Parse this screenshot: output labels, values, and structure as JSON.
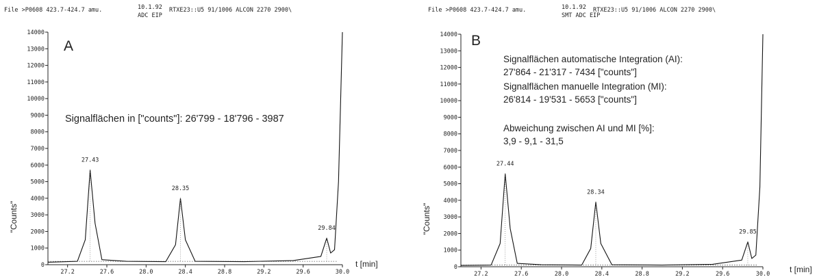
{
  "panels": [
    {
      "header_line1": "File >P0608  423.7-424.7 amu.",
      "header_date": "10.1.92",
      "header_rest": "RTXE23::U5 91/1006 ALCON 2270 2900\\",
      "header_sub": "ADC EIP",
      "panel_letter": "A",
      "annotations": [
        "Signalflächen in [\"counts\"]: 26'799 - 18'796 - 3987"
      ],
      "x_unit_label": "t [min]"
    },
    {
      "header_line1": "File >P0608  423.7-424.7 amu.",
      "header_date": "10.1.92",
      "header_rest": "RTXE23::U5 91/1006 ALCON 2270 2900\\",
      "header_sub": "SMT ADC EIP",
      "panel_letter": "B",
      "annotations": [
        "Signalflächen automatische Integration (AI):",
        "27'864 - 21'317 - 7434 [\"counts\"]",
        "Signalflächen manuelle Integration (MI):",
        "26'814 - 19'531 - 5653 [\"counts\"]",
        "Abweichung zwischen AI und MI [%]:",
        "3,9 - 9,1 - 31,5"
      ],
      "x_unit_label": "t [min]"
    }
  ],
  "chart_data": [
    {
      "type": "line",
      "title": "",
      "xlabel": "t [min]",
      "ylabel": "\"Counts\"",
      "xlim": [
        27.0,
        30.0
      ],
      "ylim": [
        0,
        14000
      ],
      "x_ticks": [
        "27.2",
        "27.6",
        "28.0",
        "28.4",
        "28.8",
        "29.2",
        "29.6",
        "30.0"
      ],
      "y_ticks": [
        "0",
        "1000",
        "2000",
        "3000",
        "4000",
        "5000",
        "6000",
        "7000",
        "8000",
        "9000",
        "10000",
        "11000",
        "12000",
        "13000",
        "14000"
      ],
      "baseline": 200,
      "peaks": [
        {
          "label": "27.43",
          "x": 27.43,
          "y": 5700
        },
        {
          "label": "28.35",
          "x": 28.35,
          "y": 4000
        },
        {
          "label": "29.84",
          "x": 29.84,
          "y": 1600
        }
      ],
      "series": [
        {
          "x": [
            27.0,
            27.3,
            27.38,
            27.43,
            27.48,
            27.55,
            27.8,
            28.2,
            28.3,
            28.35,
            28.4,
            28.5,
            29.0,
            29.5,
            29.78,
            29.84,
            29.88,
            29.92,
            29.96,
            30.0
          ],
          "y": [
            150,
            200,
            1500,
            5700,
            2500,
            300,
            200,
            180,
            1200,
            4000,
            1500,
            200,
            180,
            250,
            500,
            1600,
            700,
            900,
            5000,
            14000
          ]
        }
      ],
      "grid": false,
      "legend": "none"
    },
    {
      "type": "line",
      "title": "",
      "xlabel": "t [min]",
      "ylabel": "\"Counts\"",
      "xlim": [
        27.0,
        30.0
      ],
      "ylim": [
        0,
        14000
      ],
      "x_ticks": [
        "27.2",
        "27.6",
        "28.0",
        "28.4",
        "28.8",
        "29.2",
        "29.6",
        "30.0"
      ],
      "y_ticks": [
        "0",
        "1000",
        "2000",
        "3000",
        "4000",
        "5000",
        "6000",
        "7000",
        "8000",
        "9000",
        "10000",
        "11000",
        "12000",
        "13000",
        "14000"
      ],
      "baseline": 100,
      "peaks": [
        {
          "label": "27.44",
          "x": 27.44,
          "y": 5600
        },
        {
          "label": "28.34",
          "x": 28.34,
          "y": 3900
        },
        {
          "label": "29.85",
          "x": 29.85,
          "y": 1500
        }
      ],
      "series": [
        {
          "x": [
            27.0,
            27.3,
            27.39,
            27.44,
            27.49,
            27.56,
            27.8,
            28.2,
            28.29,
            28.34,
            28.39,
            28.5,
            29.0,
            29.5,
            29.79,
            29.85,
            29.89,
            29.93,
            29.97,
            30.0
          ],
          "y": [
            80,
            100,
            1400,
            5600,
            2300,
            200,
            120,
            100,
            1100,
            3900,
            1400,
            120,
            100,
            150,
            400,
            1500,
            500,
            700,
            4800,
            14000
          ]
        }
      ],
      "grid": false,
      "legend": "none"
    }
  ]
}
